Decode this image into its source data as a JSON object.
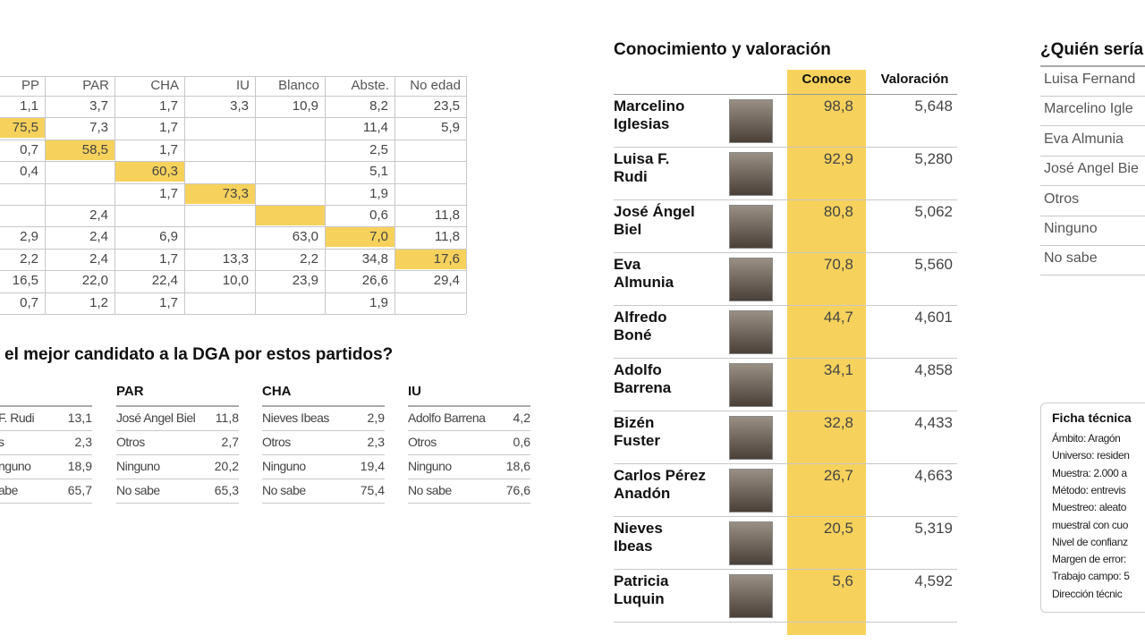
{
  "vote_table": {
    "columns": [
      "PP",
      "PAR",
      "CHA",
      "IU",
      "Blanco",
      "Abste.",
      "No edad"
    ],
    "rows": [
      [
        "1,1",
        "3,7",
        "1,7",
        "3,3",
        "10,9",
        "8,2",
        "23,5"
      ],
      [
        "75,5",
        "7,3",
        "1,7",
        null,
        null,
        "11,4",
        "5,9"
      ],
      [
        "0,7",
        "58,5",
        "1,7",
        null,
        null,
        "2,5",
        null
      ],
      [
        "0,4",
        null,
        "60,3",
        null,
        null,
        "5,1",
        null
      ],
      [
        null,
        null,
        "1,7",
        "73,3",
        null,
        "1,9",
        null
      ],
      [
        null,
        "2,4",
        null,
        null,
        null,
        "0,6",
        "11,8"
      ],
      [
        "2,9",
        "2,4",
        "6,9",
        null,
        "63,0",
        "7,0",
        "11,8"
      ],
      [
        "2,2",
        "2,4",
        "1,7",
        "13,3",
        "2,2",
        "34,8",
        "17,6"
      ],
      [
        "16,5",
        "22,0",
        "22,4",
        "10,0",
        "23,9",
        "26,6",
        "29,4"
      ],
      [
        "0,7",
        "1,2",
        "1,7",
        null,
        null,
        "1,9",
        null
      ]
    ]
  },
  "candidate_question": {
    "title": "el mejor candidato a la DGA por estos partidos?",
    "parties": [
      {
        "rows": [
          {
            "label": "F. Rudi",
            "value": "13,1"
          },
          {
            "label": "s",
            "value": "2,3"
          },
          {
            "label": "nguno",
            "value": "18,9"
          },
          {
            "label": "abe",
            "value": "65,7"
          }
        ]
      },
      {
        "name": "PAR",
        "rows": [
          {
            "label": "José Angel Biel",
            "value": "11,8"
          },
          {
            "label": "Otros",
            "value": "2,7"
          },
          {
            "label": "Ninguno",
            "value": "20,2"
          },
          {
            "label": "No sabe",
            "value": "65,3"
          }
        ]
      },
      {
        "name": "CHA",
        "rows": [
          {
            "label": "Nieves Ibeas",
            "value": "2,9"
          },
          {
            "label": "Otros",
            "value": "2,3"
          },
          {
            "label": "Ninguno",
            "value": "19,4"
          },
          {
            "label": "No sabe",
            "value": "75,4"
          }
        ]
      },
      {
        "name": "IU",
        "rows": [
          {
            "label": "Adolfo Barrena",
            "value": "4,2"
          },
          {
            "label": "Otros",
            "value": "0,6"
          },
          {
            "label": "Ninguno",
            "value": "18,6"
          },
          {
            "label": "No sabe",
            "value": "76,6"
          }
        ]
      }
    ]
  },
  "knowledge": {
    "title": "Conocimiento y valoración",
    "columns": [
      "Conoce",
      "Valoración"
    ],
    "rows": [
      {
        "name": [
          "Marcelino",
          "Iglesias"
        ],
        "conoce": "98,8",
        "valoracion": "5,648"
      },
      {
        "name": [
          "Luisa F.",
          "Rudi"
        ],
        "conoce": "92,9",
        "valoracion": "5,280"
      },
      {
        "name": [
          "José Ángel",
          "Biel"
        ],
        "conoce": "80,8",
        "valoracion": "5,062"
      },
      {
        "name": [
          "Eva",
          "Almunia"
        ],
        "conoce": "70,8",
        "valoracion": "5,560"
      },
      {
        "name": [
          "Alfredo",
          "Boné"
        ],
        "conoce": "44,7",
        "valoracion": "4,601"
      },
      {
        "name": [
          "Adolfo",
          "Barrena"
        ],
        "conoce": "34,1",
        "valoracion": "4,858"
      },
      {
        "name": [
          "Bizén",
          "Fuster"
        ],
        "conoce": "32,8",
        "valoracion": "4,433"
      },
      {
        "name": [
          "Carlos Pérez",
          "Anadón"
        ],
        "conoce": "26,7",
        "valoracion": "4,663"
      },
      {
        "name": [
          "Nieves",
          "Ibeas"
        ],
        "conoce": "20,5",
        "valoracion": "5,319"
      },
      {
        "name": [
          "Patricia",
          "Luquin"
        ],
        "conoce": "5,6",
        "valoracion": "4,592"
      }
    ]
  },
  "who_would_be": {
    "title": "¿Quién sería",
    "options": [
      "Luisa Fernand",
      "Marcelino Igle",
      "Eva Almunia",
      "José Angel Bie",
      "Otros",
      "Ninguno",
      "No sabe"
    ]
  },
  "ficha": {
    "title": "Ficha técnica",
    "lines": [
      "Ámbito: Aragón",
      "Universo: residen",
      "Muestra: 2.000 a",
      "Método: entrevis",
      "Muestreo: aleato",
      "muestral con cuo",
      "Nivel de confianz",
      "Margen de error:",
      "Trabajo campo: 5",
      "Dirección técnic"
    ]
  }
}
